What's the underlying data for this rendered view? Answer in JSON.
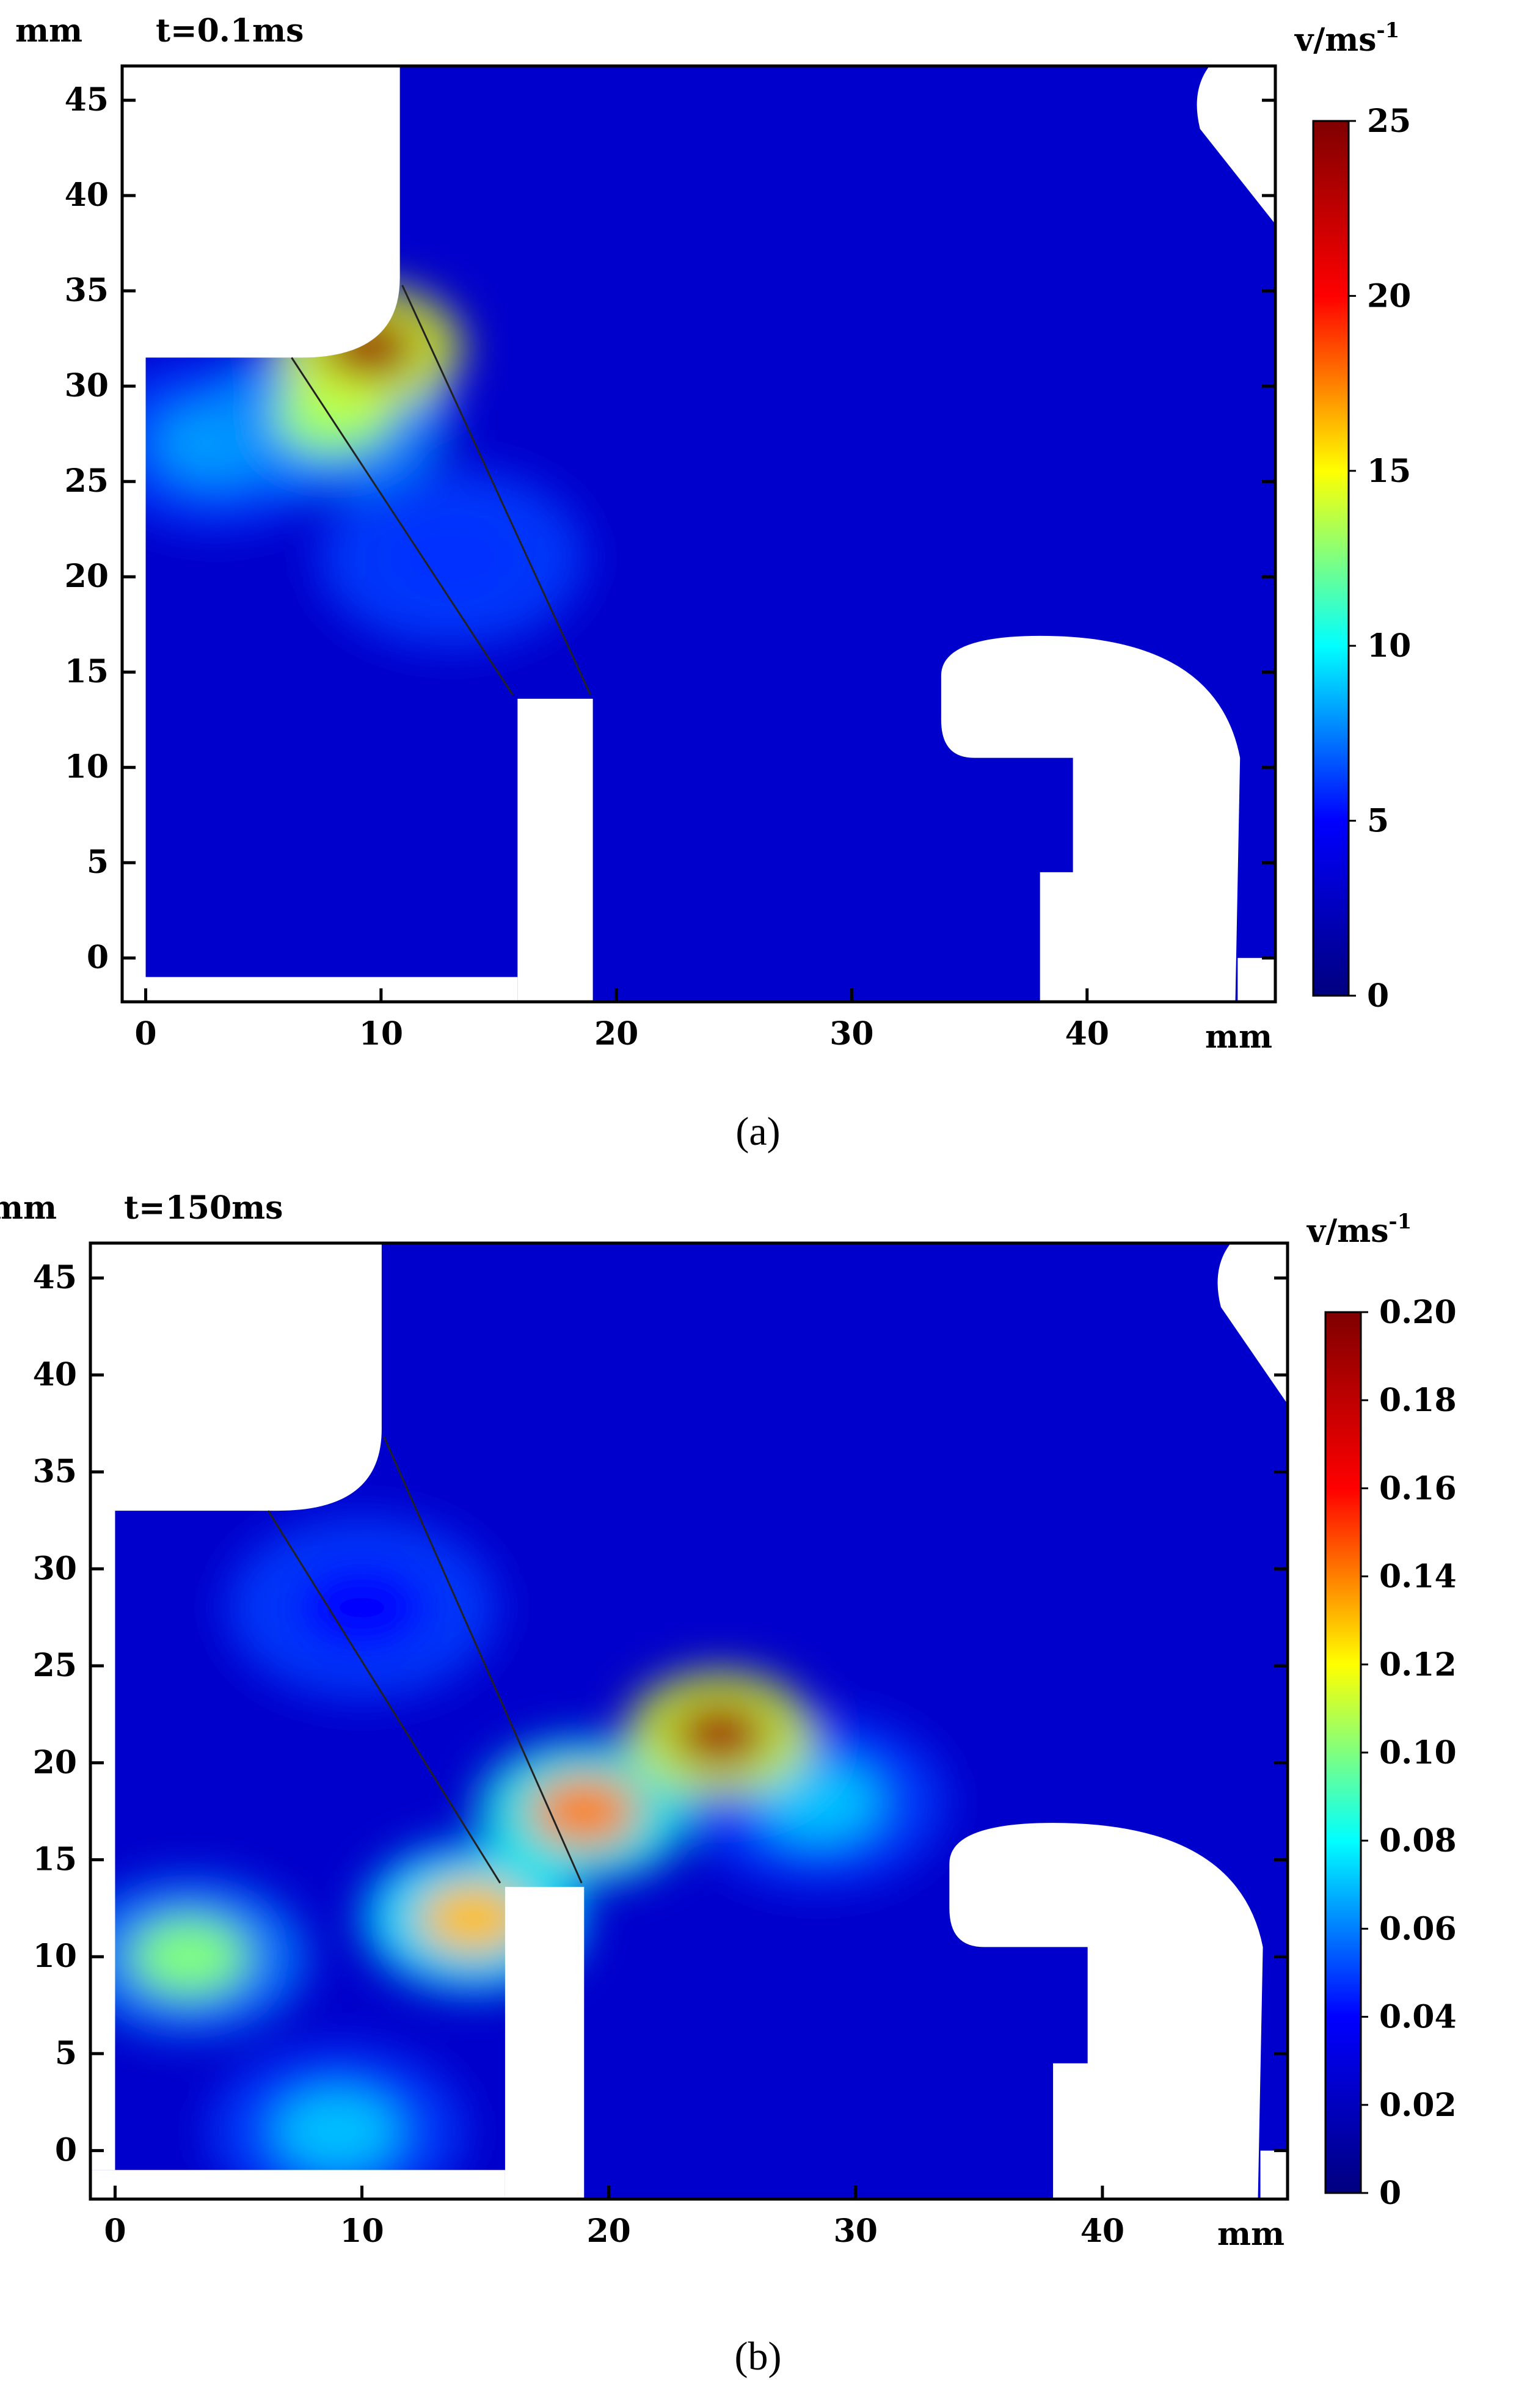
{
  "chart_data": [
    {
      "type": "heatmap",
      "panel_label": "(a)",
      "time_label": "t=0.1ms",
      "xlabel": "mm",
      "ylabel": "mm",
      "colorbar_label": "v/ms-1",
      "xlim": [
        -1,
        48
      ],
      "ylim": [
        -2.3,
        46.8
      ],
      "x_ticks": [
        0,
        10,
        20,
        30,
        40
      ],
      "x_tick_labels": [
        "0",
        "10",
        "20",
        "30",
        "40"
      ],
      "y_ticks": [
        0,
        5,
        10,
        15,
        20,
        25,
        30,
        35,
        40,
        45
      ],
      "y_tick_labels": [
        "0",
        "5",
        "10",
        "15",
        "20",
        "25",
        "30",
        "35",
        "40",
        "45"
      ],
      "colorbar_range": [
        0,
        25
      ],
      "colorbar_ticks": [
        0,
        5,
        10,
        15,
        20,
        25
      ],
      "colorbar_tick_labels": [
        "0",
        "5",
        "10",
        "15",
        "20",
        "25"
      ],
      "colormap": [
        "#00007f",
        "#0000ff",
        "#00ffff",
        "#ffff00",
        "#ff0000",
        "#7f0000"
      ],
      "hotspots": [
        {
          "x": 9.5,
          "y": 32.0,
          "value": 24
        },
        {
          "x": 8.0,
          "y": 28.5,
          "value": 13
        },
        {
          "x": 3.0,
          "y": 27.0,
          "value": 8
        },
        {
          "x": 13.0,
          "y": 21.0,
          "value": 6
        }
      ]
    },
    {
      "type": "heatmap",
      "panel_label": "(b)",
      "time_label": "t=150ms",
      "xlabel": "mm",
      "ylabel": "mm",
      "colorbar_label": "v/ms-1",
      "xlim": [
        -1,
        47.5
      ],
      "ylim": [
        -2.5,
        46.8
      ],
      "x_ticks": [
        0,
        10,
        20,
        30,
        40
      ],
      "x_tick_labels": [
        "0",
        "10",
        "20",
        "30",
        "40"
      ],
      "y_ticks": [
        0,
        5,
        10,
        15,
        20,
        25,
        30,
        35,
        40,
        45
      ],
      "y_tick_labels": [
        "0",
        "5",
        "10",
        "15",
        "20",
        "25",
        "30",
        "35",
        "40",
        "45"
      ],
      "colorbar_range": [
        0,
        0.2
      ],
      "colorbar_ticks": [
        0,
        0.02,
        0.04,
        0.06,
        0.08,
        0.1,
        0.12,
        0.14,
        0.16,
        0.18,
        0.2
      ],
      "colorbar_tick_labels": [
        "0",
        "0.02",
        "0.04",
        "0.06",
        "0.08",
        "0.10",
        "0.12",
        "0.14",
        "0.16",
        "0.18",
        "0.20"
      ],
      "colormap": [
        "#00007f",
        "#0000ff",
        "#00ffff",
        "#ffff00",
        "#ff0000",
        "#7f0000"
      ],
      "hotspots": [
        {
          "x": 24.5,
          "y": 21.5,
          "value": 0.19
        },
        {
          "x": 19.0,
          "y": 17.5,
          "value": 0.14
        },
        {
          "x": 14.5,
          "y": 12.0,
          "value": 0.13
        },
        {
          "x": 3.0,
          "y": 10.0,
          "value": 0.1
        },
        {
          "x": 9.0,
          "y": 1.0,
          "value": 0.07
        },
        {
          "x": 28.5,
          "y": 18.0,
          "value": 0.07
        },
        {
          "x": 10.0,
          "y": 28.0,
          "value": 0.04
        }
      ]
    }
  ]
}
